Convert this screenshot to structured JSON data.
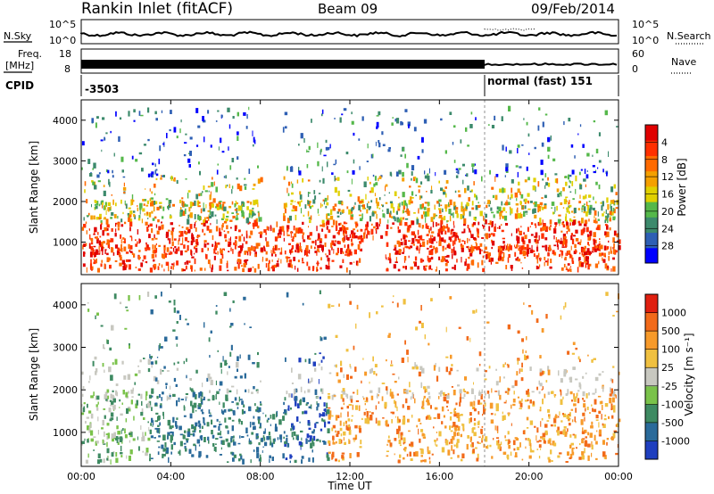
{
  "header": {
    "radar": "Rankin Inlet (fitACF)",
    "beam": "Beam 09",
    "date": "09/Feb/2014"
  },
  "strip": {
    "nsky_label": "N.Sky",
    "nsearch_label": "N.Search",
    "nsky_ticks": [
      "10^5",
      "10^0"
    ],
    "nsearch_ticks": [
      "10^5",
      "10^0"
    ],
    "freq_label_1": "Freq.",
    "freq_label_2": "[MHz]",
    "freq_ticks": [
      "18",
      "8"
    ],
    "nave_label": "Nave",
    "nave_ticks": [
      "60",
      "0"
    ],
    "cpid_label": "CPID",
    "cpid_1": "-3503",
    "cpid_2": "normal (fast) 151"
  },
  "chart_data": [
    {
      "type": "heatmap",
      "panel": "power",
      "ylabel": "Slant Range [km]",
      "yticks": [
        "1000",
        "2000",
        "3000",
        "4000"
      ],
      "ylim": [
        200,
        4500
      ],
      "xlim": [
        0,
        24
      ],
      "colorbar_label": "Power [dB]",
      "colorbar_ticks": [
        "4",
        "8",
        "12",
        "16",
        "20",
        "24",
        "28"
      ],
      "colors": [
        "#0000ff",
        "#2e5fb4",
        "#3c8a6c",
        "#55b84a",
        "#e0d000",
        "#f5a000",
        "#ff6a00",
        "#ff3000",
        "#e00000"
      ]
    },
    {
      "type": "heatmap",
      "panel": "velocity",
      "ylabel": "Slant Range [km]",
      "yticks": [
        "1000",
        "2000",
        "3000",
        "4000"
      ],
      "ylim": [
        200,
        4500
      ],
      "xlim": [
        0,
        24
      ],
      "colorbar_label": "Velocity [m s⁻¹]",
      "colorbar_ticks": [
        "1000",
        "500",
        "100",
        "25",
        "-25",
        "-100",
        "-500",
        "-1000"
      ],
      "colors": [
        "#1f3fbf",
        "#2a6a9a",
        "#3e8a62",
        "#7ac24a",
        "#c8c8c0",
        "#f0c040",
        "#f79a2a",
        "#f26a1a",
        "#e02010"
      ]
    }
  ],
  "xaxis": {
    "ticks": [
      "00:00",
      "04:00",
      "08:00",
      "12:00",
      "16:00",
      "20:00",
      "00:00"
    ],
    "label": "Time UT"
  }
}
